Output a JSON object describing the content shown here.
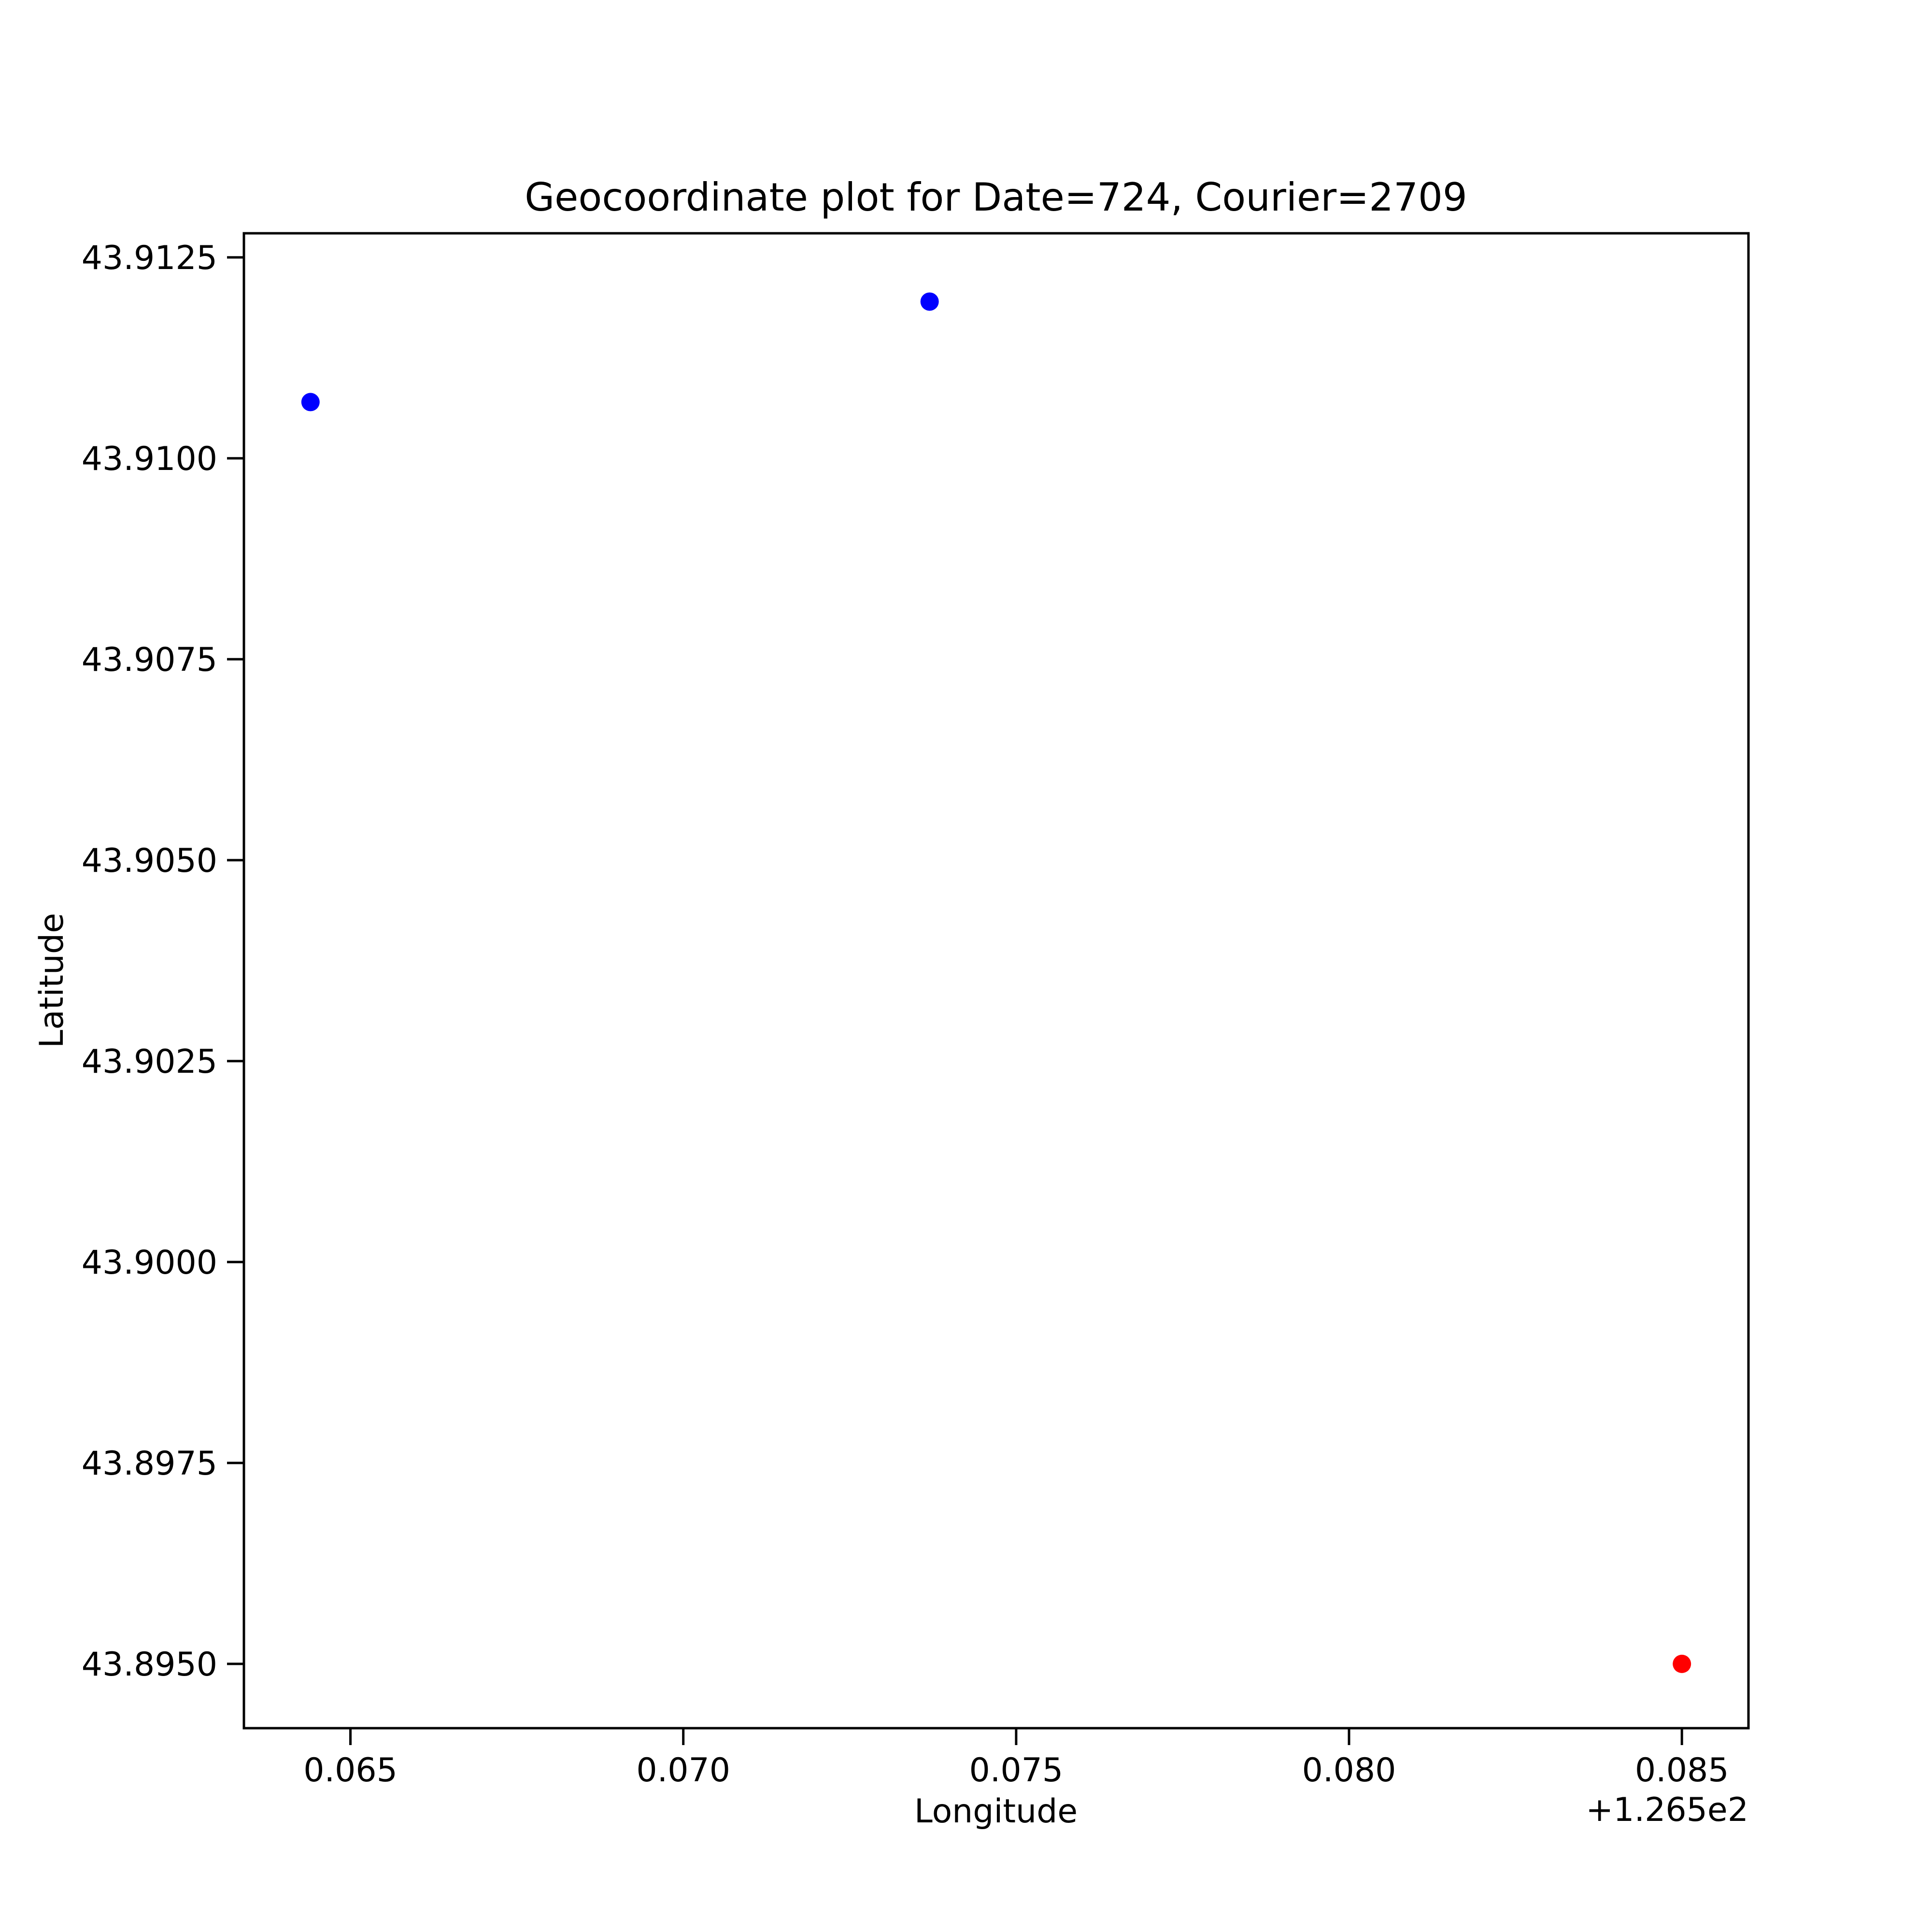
{
  "chart_data": {
    "type": "scatter",
    "title": "Geocoordinate plot for Date=724, Courier=2709",
    "xlabel": "Longitude",
    "ylabel": "Latitude",
    "x_offset_label": "+1.265e2",
    "xlim": [
      126.5634,
      126.586
    ],
    "ylim": [
      43.8942,
      43.9128
    ],
    "x_ticks": [
      126.565,
      126.57,
      126.575,
      126.58,
      126.585
    ],
    "x_tick_labels": [
      "0.065",
      "0.070",
      "0.075",
      "0.080",
      "0.085"
    ],
    "y_ticks": [
      43.895,
      43.8975,
      43.9,
      43.9025,
      43.905,
      43.9075,
      43.91,
      43.9125
    ],
    "y_tick_labels": [
      "43.8950",
      "43.8975",
      "43.9000",
      "43.9025",
      "43.9050",
      "43.9075",
      "43.9100",
      "43.9125"
    ],
    "grid": false,
    "points": [
      {
        "x": 126.5644,
        "y": 43.9107,
        "color": "#0000ff"
      },
      {
        "x": 126.5737,
        "y": 43.91195,
        "color": "#0000ff"
      },
      {
        "x": 126.585,
        "y": 43.895,
        "color": "#ff0000"
      }
    ]
  }
}
